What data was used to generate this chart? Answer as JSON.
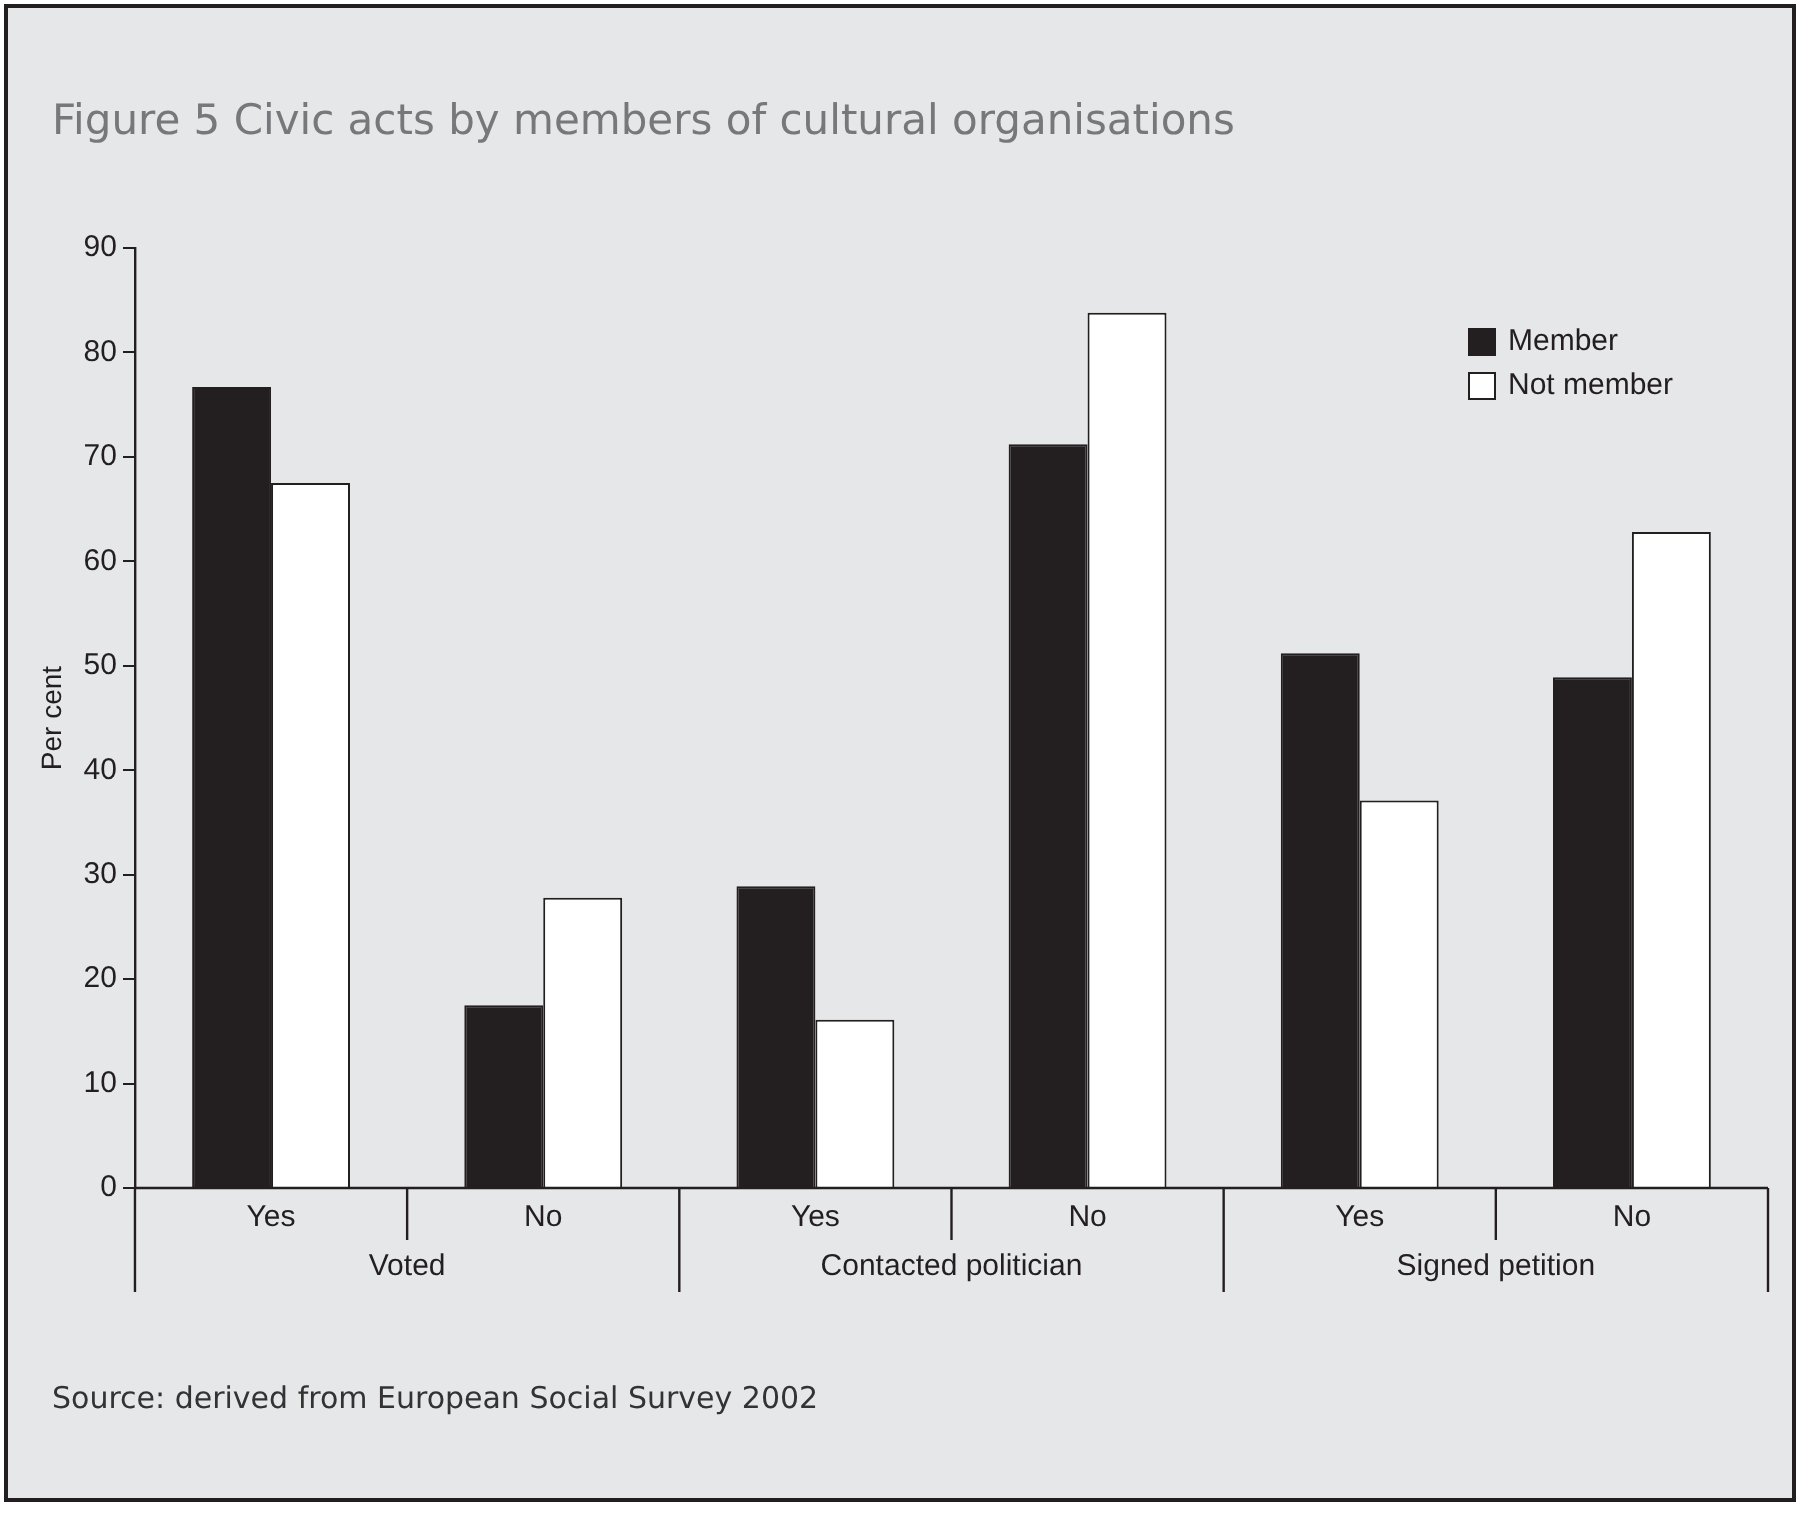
{
  "chart_data": {
    "type": "bar",
    "title": "Figure 5 Civic acts by members of cultural organisations",
    "ylabel": "Per cent",
    "categories": [
      "Yes",
      "No",
      "Yes",
      "No",
      "Yes",
      "No"
    ],
    "series": [
      {
        "name": "Member",
        "color": "#231f20",
        "values": [
          76.7,
          17.5,
          28.9,
          71.2,
          51.2,
          48.9
        ]
      },
      {
        "name": "Not member",
        "color": "#ffffff",
        "values": [
          67.5,
          27.8,
          16.1,
          83.8,
          37.1,
          62.8
        ]
      }
    ],
    "ylim": [
      0,
      90
    ],
    "yticks": [
      0,
      10,
      20,
      30,
      40,
      50,
      60,
      70,
      80,
      90
    ],
    "grid": false,
    "legend": "top right",
    "annotations": [
      "Voted",
      "Contacted politician",
      "Signed petition",
      "Source: derived from European Social Survey 2002"
    ]
  }
}
